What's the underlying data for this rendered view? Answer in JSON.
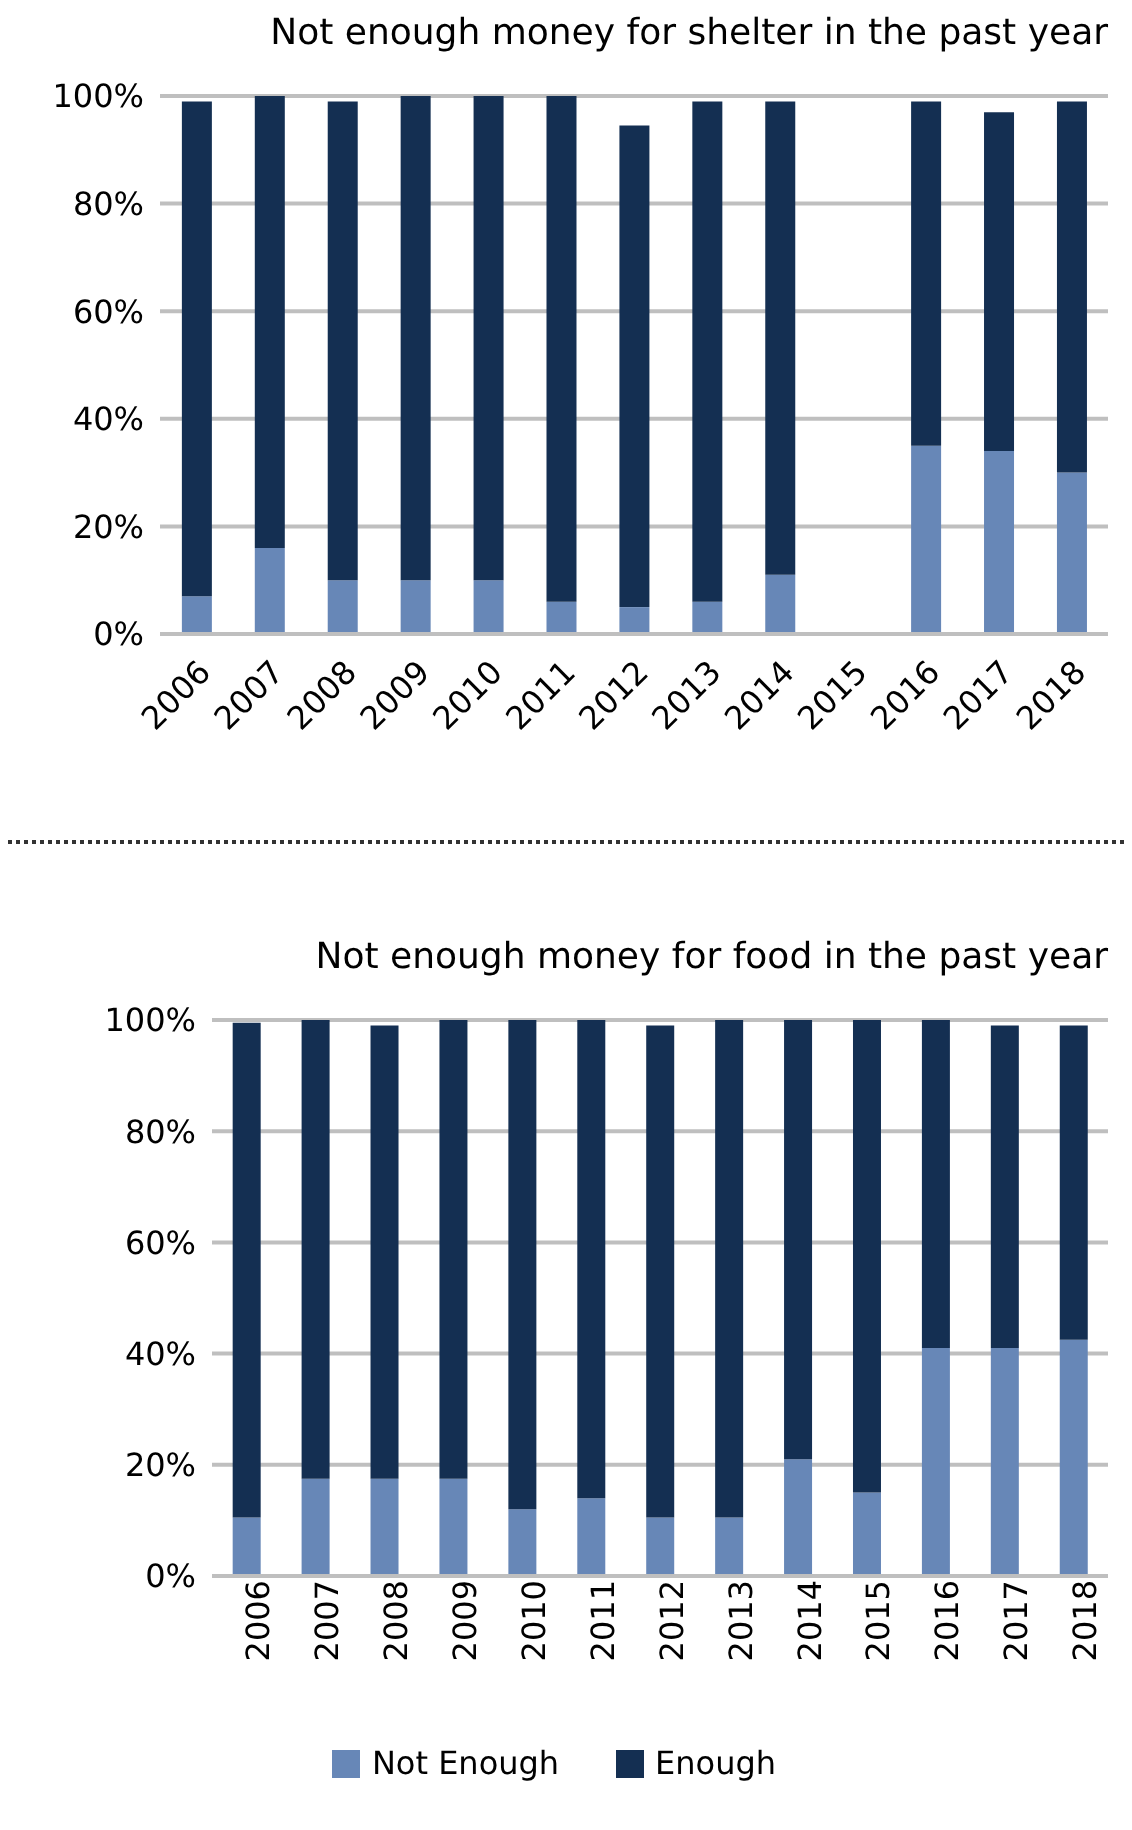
{
  "chart_data": [
    {
      "type": "bar",
      "title": "Not enough money for shelter in the past year",
      "stacked": true,
      "categories": [
        "2006",
        "2007",
        "2008",
        "2009",
        "2010",
        "2011",
        "2012",
        "2013",
        "2014",
        "2015",
        "2016",
        "2017",
        "2018"
      ],
      "series": [
        {
          "color": "#6787b7",
          "values": [
            7,
            16,
            10,
            10,
            10,
            6,
            5,
            6,
            11,
            null,
            35,
            34,
            30
          ]
        },
        {
          "color": "#142f52",
          "values": [
            92,
            84,
            89,
            90,
            90,
            94,
            89.5,
            93,
            88,
            null,
            64,
            63,
            69
          ]
        }
      ],
      "ylim": [
        0,
        100
      ],
      "yticks": [
        {
          "value": 0,
          "label": "0%"
        },
        {
          "value": 20,
          "label": "20%"
        },
        {
          "value": 40,
          "label": "40%"
        },
        {
          "value": 60,
          "label": "60%"
        },
        {
          "value": 80,
          "label": "80%"
        },
        {
          "value": 100,
          "label": "100%"
        }
      ],
      "grid": "y",
      "legend": false
    },
    {
      "type": "bar",
      "title": "Not enough money for food in the past year",
      "stacked": true,
      "categories": [
        "2006",
        "2007",
        "2008",
        "2009",
        "2010",
        "2011",
        "2012",
        "2013",
        "2014",
        "2015",
        "2016",
        "2017",
        "2018"
      ],
      "series": [
        {
          "name": "Not Enough",
          "color": "#6787b7",
          "values": [
            10.5,
            17.5,
            17.5,
            17.5,
            12,
            14,
            10.5,
            10.5,
            21,
            15,
            41,
            41,
            42.5
          ]
        },
        {
          "name": "Enough",
          "color": "#142f52",
          "values": [
            89,
            82.5,
            81.5,
            82.5,
            88,
            86,
            88.5,
            89.5,
            79,
            85,
            59,
            58,
            56.5
          ]
        }
      ],
      "ylim": [
        0,
        100
      ],
      "yticks": [
        {
          "value": 0,
          "label": "0%"
        },
        {
          "value": 20,
          "label": "20%"
        },
        {
          "value": 40,
          "label": "40%"
        },
        {
          "value": 60,
          "label": "60%"
        },
        {
          "value": 80,
          "label": "80%"
        },
        {
          "value": 100,
          "label": "100%"
        }
      ],
      "grid": "y",
      "legend": "bottom"
    }
  ]
}
